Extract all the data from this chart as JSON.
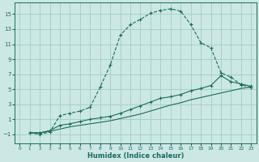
{
  "xlabel": "Humidex (Indice chaleur)",
  "background_color": "#cce8e4",
  "grid_color": "#a0ccc8",
  "line_color": "#1a6b60",
  "xlim": [
    -0.5,
    23.5
  ],
  "ylim": [
    -2.2,
    16.5
  ],
  "yticks": [
    -1,
    1,
    3,
    5,
    7,
    9,
    11,
    13,
    15
  ],
  "xticks": [
    0,
    1,
    2,
    3,
    4,
    5,
    6,
    7,
    8,
    9,
    10,
    11,
    12,
    13,
    14,
    15,
    16,
    17,
    18,
    19,
    20,
    21,
    22,
    23
  ],
  "curve1_x": [
    1,
    2,
    3,
    4,
    5,
    6,
    7,
    8,
    9,
    10,
    11,
    12,
    13,
    14,
    15,
    16,
    17,
    18,
    19,
    20,
    21,
    22,
    23
  ],
  "curve1_y": [
    -0.8,
    -1.0,
    -0.7,
    1.5,
    1.8,
    2.1,
    2.6,
    5.3,
    8.2,
    12.2,
    13.6,
    14.3,
    15.1,
    15.5,
    15.7,
    15.4,
    13.6,
    11.2,
    10.5,
    7.2,
    6.6,
    5.6,
    5.2
  ],
  "curve2_x": [
    1,
    2,
    3,
    4,
    5,
    6,
    7,
    8,
    9,
    10,
    11,
    12,
    13,
    14,
    15,
    16,
    17,
    18,
    19,
    20,
    21,
    22,
    23
  ],
  "curve2_y": [
    -0.8,
    -0.8,
    -0.5,
    0.2,
    0.4,
    0.7,
    1.0,
    1.2,
    1.4,
    1.8,
    2.3,
    2.8,
    3.3,
    3.8,
    4.0,
    4.3,
    4.8,
    5.1,
    5.5,
    6.8,
    6.0,
    5.7,
    5.4
  ],
  "curve3_x": [
    1,
    2,
    3,
    4,
    5,
    6,
    7,
    8,
    9,
    10,
    11,
    12,
    13,
    14,
    15,
    16,
    17,
    18,
    19,
    20,
    21,
    22,
    23
  ],
  "curve3_y": [
    -0.8,
    -0.8,
    -0.6,
    -0.3,
    0.0,
    0.2,
    0.4,
    0.6,
    0.8,
    1.1,
    1.4,
    1.7,
    2.1,
    2.5,
    2.9,
    3.2,
    3.6,
    3.9,
    4.2,
    4.5,
    4.8,
    5.1,
    5.3
  ]
}
